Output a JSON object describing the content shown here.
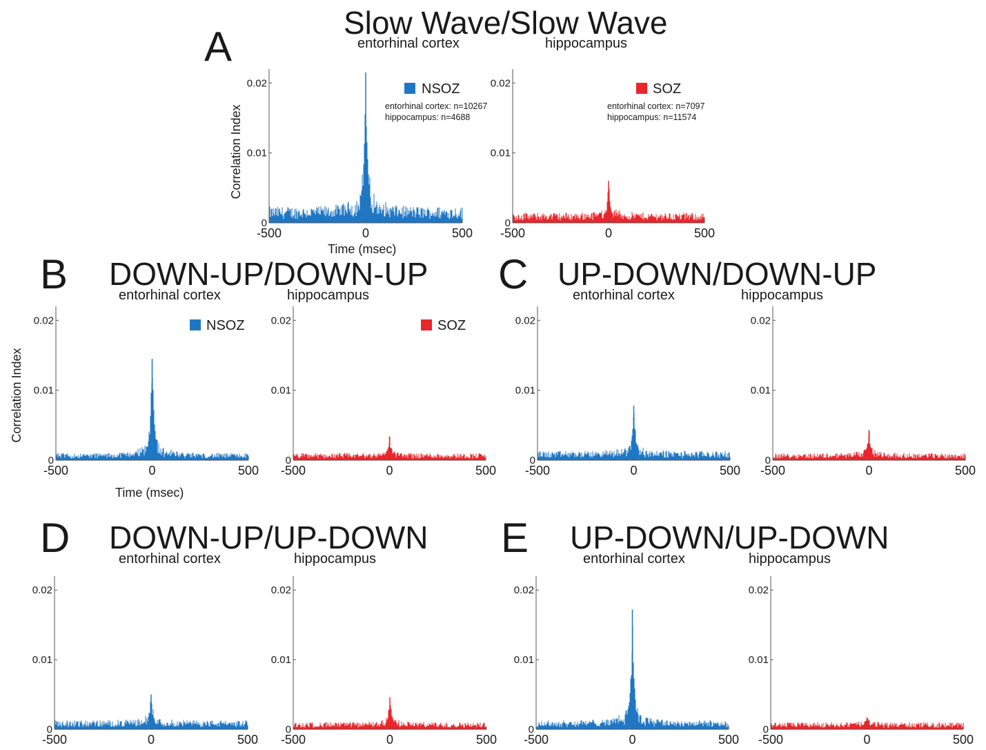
{
  "colors": {
    "nsoz": "#1f77c4",
    "soz": "#e8262b"
  },
  "panels": [
    {
      "id": "A",
      "letter": "A",
      "title": "Slow Wave/Slow Wave",
      "region_left": "entorhinal cortex",
      "region_right": "hippocampus"
    },
    {
      "id": "B",
      "letter": "B",
      "title": "DOWN-UP/DOWN-UP",
      "region_left": "entorhinal cortex",
      "region_right": "hippocampus"
    },
    {
      "id": "C",
      "letter": "C",
      "title": "UP-DOWN/DOWN-UP",
      "region_left": "entorhinal cortex",
      "region_right": "hippocampus"
    },
    {
      "id": "D",
      "letter": "D",
      "title": "DOWN-UP/UP-DOWN",
      "region_left": "entorhinal cortex",
      "region_right": "hippocampus"
    },
    {
      "id": "E",
      "letter": "E",
      "title": "UP-DOWN/UP-DOWN",
      "region_left": "entorhinal cortex",
      "region_right": "hippocampus"
    }
  ],
  "axis_labels": {
    "ylabel": "Correlation Index",
    "xlabel": "Time (msec)"
  },
  "legend": {
    "nsoz": "NSOZ",
    "soz": "SOZ",
    "nsoz_counts": [
      "entorhinal cortex: n=10267",
      "hippocampus: n=4688"
    ],
    "soz_counts": [
      "entorhinal cortex: n=7097",
      "hippocampus: n=11574"
    ]
  },
  "chart_data": [
    {
      "panel": "A",
      "group": "NSOZ",
      "type": "bar",
      "x_range": [
        -500,
        500
      ],
      "ylim": [
        0,
        0.022
      ],
      "x_ticks": [
        "-500",
        "0",
        "500"
      ],
      "y_ticks": [
        "0",
        "0.01",
        "0.02"
      ],
      "peak_x": 0,
      "peak": 0.0215,
      "baseline": 0.0016,
      "color": "nsoz"
    },
    {
      "panel": "A",
      "group": "SOZ",
      "type": "bar",
      "x_range": [
        -500,
        500
      ],
      "ylim": [
        0,
        0.022
      ],
      "x_ticks": [
        "-500",
        "0",
        "500"
      ],
      "y_ticks": [
        "0",
        "0.01",
        "0.02"
      ],
      "peak_x": 0,
      "peak": 0.006,
      "baseline": 0.001,
      "color": "soz"
    },
    {
      "panel": "B",
      "group": "NSOZ",
      "type": "bar",
      "x_range": [
        -500,
        500
      ],
      "ylim": [
        0,
        0.022
      ],
      "x_ticks": [
        "-500",
        "0",
        "500"
      ],
      "y_ticks": [
        "0",
        "0.01",
        "0.02"
      ],
      "peak_x": 0,
      "peak": 0.0145,
      "baseline": 0.0007,
      "color": "nsoz"
    },
    {
      "panel": "B",
      "group": "SOZ",
      "type": "bar",
      "x_range": [
        -500,
        500
      ],
      "ylim": [
        0,
        0.022
      ],
      "x_ticks": [
        "-500",
        "0",
        "500"
      ],
      "y_ticks": [
        "0",
        "0.01",
        "0.02"
      ],
      "peak_x": 0,
      "peak": 0.0034,
      "baseline": 0.0007,
      "color": "soz"
    },
    {
      "panel": "C",
      "group": "NSOZ",
      "type": "bar",
      "x_range": [
        -500,
        500
      ],
      "ylim": [
        0,
        0.022
      ],
      "x_ticks": [
        "-500",
        "0",
        "500"
      ],
      "y_ticks": [
        "0",
        "0.01",
        "0.02"
      ],
      "peak_x": 0,
      "peak": 0.0078,
      "baseline": 0.0009,
      "color": "nsoz"
    },
    {
      "panel": "C",
      "group": "SOZ",
      "type": "bar",
      "x_range": [
        -500,
        500
      ],
      "ylim": [
        0,
        0.022
      ],
      "x_ticks": [
        "-500",
        "0",
        "500"
      ],
      "y_ticks": [
        "0",
        "0.01",
        "0.02"
      ],
      "peak_x": 0,
      "peak": 0.0043,
      "baseline": 0.0007,
      "color": "soz"
    },
    {
      "panel": "D",
      "group": "NSOZ",
      "type": "bar",
      "x_range": [
        -500,
        500
      ],
      "ylim": [
        0,
        0.022
      ],
      "x_ticks": [
        "-500",
        "0",
        "500"
      ],
      "y_ticks": [
        "0",
        "0.01",
        "0.02"
      ],
      "peak_x": 0,
      "peak": 0.005,
      "baseline": 0.0009,
      "color": "nsoz"
    },
    {
      "panel": "D",
      "group": "SOZ",
      "type": "bar",
      "x_range": [
        -500,
        500
      ],
      "ylim": [
        0,
        0.022
      ],
      "x_ticks": [
        "-500",
        "0",
        "500"
      ],
      "y_ticks": [
        "0",
        "0.01",
        "0.02"
      ],
      "peak_x": 0,
      "peak": 0.0046,
      "baseline": 0.0007,
      "color": "soz"
    },
    {
      "panel": "E",
      "group": "NSOZ",
      "type": "bar",
      "x_range": [
        -500,
        500
      ],
      "ylim": [
        0,
        0.022
      ],
      "x_ticks": [
        "-500",
        "0",
        "500"
      ],
      "y_ticks": [
        "0",
        "0.01",
        "0.02"
      ],
      "peak_x": 0,
      "peak": 0.0172,
      "baseline": 0.0009,
      "color": "nsoz"
    },
    {
      "panel": "E",
      "group": "SOZ",
      "type": "bar",
      "x_range": [
        -500,
        500
      ],
      "ylim": [
        0,
        0.022
      ],
      "x_ticks": [
        "-500",
        "0",
        "500"
      ],
      "y_ticks": [
        "0",
        "0.01",
        "0.02"
      ],
      "peak_x": 0,
      "peak": 0.0017,
      "baseline": 0.0007,
      "color": "soz"
    }
  ]
}
